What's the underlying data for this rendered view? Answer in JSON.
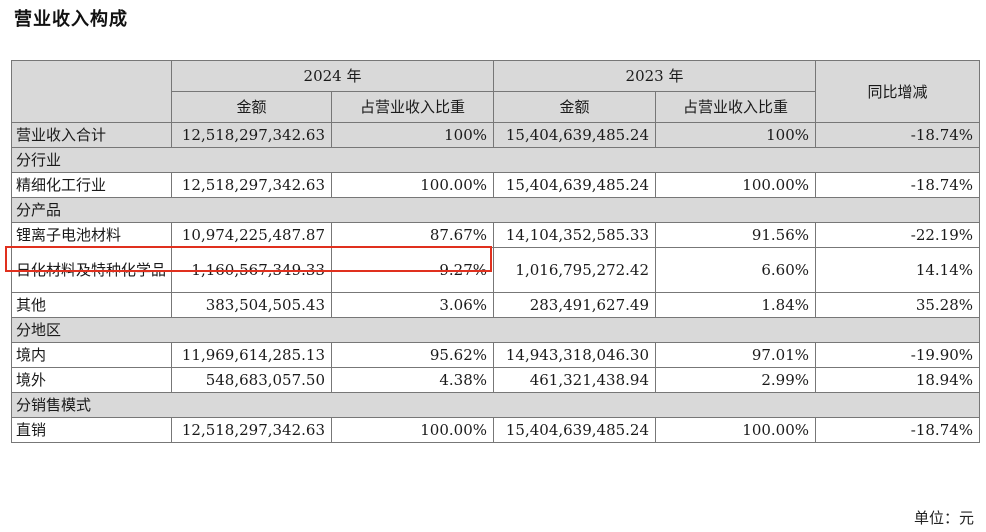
{
  "title": "营业收入构成",
  "header": {
    "year_2024": "2024 年",
    "year_2023": "2023 年",
    "yoy": "同比增减",
    "amount": "金额",
    "share": "占营业收入比重"
  },
  "rows": {
    "total": {
      "label": "营业收入合计",
      "a2024": "12,518,297,342.63",
      "s2024": "100%",
      "a2023": "15,404,639,485.24",
      "s2023": "100%",
      "yoy": "-18.74%"
    },
    "sec_industry": "分行业",
    "fine_chem": {
      "label": "精细化工行业",
      "a2024": "12,518,297,342.63",
      "s2024": "100.00%",
      "a2023": "15,404,639,485.24",
      "s2023": "100.00%",
      "yoy": "-18.74%"
    },
    "sec_product": "分产品",
    "li_battery": {
      "label": "锂离子电池材料",
      "a2024": "10,974,225,487.87",
      "s2024": "87.67%",
      "a2023": "14,104,352,585.33",
      "s2023": "91.56%",
      "yoy": "-22.19%"
    },
    "daily_chem": {
      "label": "日化材料及特种化学品",
      "a2024": "1,160,567,349.33",
      "s2024": "9.27%",
      "a2023": "1,016,795,272.42",
      "s2023": "6.60%",
      "yoy": "14.14%"
    },
    "other": {
      "label": "其他",
      "a2024": "383,504,505.43",
      "s2024": "3.06%",
      "a2023": "283,491,627.49",
      "s2023": "1.84%",
      "yoy": "35.28%"
    },
    "sec_region": "分地区",
    "domestic": {
      "label": "境内",
      "a2024": "11,969,614,285.13",
      "s2024": "95.62%",
      "a2023": "14,943,318,046.30",
      "s2023": "97.01%",
      "yoy": "-19.90%"
    },
    "overseas": {
      "label": "境外",
      "a2024": "548,683,057.50",
      "s2024": "4.38%",
      "a2023": "461,321,438.94",
      "s2023": "2.99%",
      "yoy": "18.94%"
    },
    "sec_sales": "分销售模式",
    "direct": {
      "label": "直销",
      "a2024": "12,518,297,342.63",
      "s2024": "100.00%",
      "a2023": "15,404,639,485.24",
      "s2023": "100.00%",
      "yoy": "-18.74%"
    }
  },
  "unit": "单位：元",
  "colors": {
    "header_bg": "#d9d9d9",
    "highlight_border": "#e0301e"
  }
}
